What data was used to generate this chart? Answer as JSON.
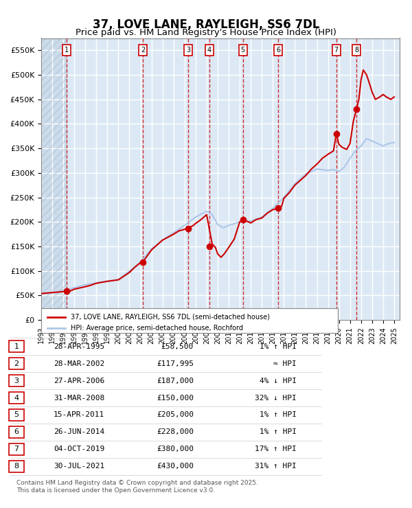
{
  "title": "37, LOVE LANE, RAYLEIGH, SS6 7DL",
  "subtitle": "Price paid vs. HM Land Registry's House Price Index (HPI)",
  "legend_house": "37, LOVE LANE, RAYLEIGH, SS6 7DL (semi-detached house)",
  "legend_hpi": "HPI: Average price, semi-detached house, Rochford",
  "footer": "Contains HM Land Registry data © Crown copyright and database right 2025.\nThis data is licensed under the Open Government Licence v3.0.",
  "xlim_start": 1993.0,
  "xlim_end": 2025.5,
  "ylim_min": 0,
  "ylim_max": 575000,
  "yticks": [
    0,
    50000,
    100000,
    150000,
    200000,
    250000,
    300000,
    350000,
    400000,
    450000,
    500000,
    550000
  ],
  "ytick_labels": [
    "£0",
    "£50K",
    "£100K",
    "£150K",
    "£200K",
    "£250K",
    "£300K",
    "£350K",
    "£400K",
    "£450K",
    "£500K",
    "£550K"
  ],
  "xtick_years": [
    1993,
    1994,
    1995,
    1996,
    1997,
    1998,
    1999,
    2000,
    2001,
    2002,
    2003,
    2004,
    2005,
    2006,
    2007,
    2008,
    2009,
    2010,
    2011,
    2012,
    2013,
    2014,
    2015,
    2016,
    2017,
    2018,
    2019,
    2020,
    2021,
    2022,
    2023,
    2024,
    2025
  ],
  "sales": [
    {
      "num": 1,
      "date": "28-APR-1995",
      "year": 1995.32,
      "price": 58500,
      "pct": "1%",
      "dir": "↑",
      "rel": "HPI"
    },
    {
      "num": 2,
      "date": "28-MAR-2002",
      "year": 2002.24,
      "price": 117995,
      "pct": "≈",
      "dir": "",
      "rel": "HPI"
    },
    {
      "num": 3,
      "date": "27-APR-2006",
      "year": 2006.32,
      "price": 187000,
      "pct": "4%",
      "dir": "↓",
      "rel": "HPI"
    },
    {
      "num": 4,
      "date": "31-MAR-2008",
      "year": 2008.25,
      "price": 150000,
      "pct": "32%",
      "dir": "↓",
      "rel": "HPI"
    },
    {
      "num": 5,
      "date": "15-APR-2011",
      "year": 2011.29,
      "price": 205000,
      "pct": "1%",
      "dir": "↑",
      "rel": "HPI"
    },
    {
      "num": 6,
      "date": "26-JUN-2014",
      "year": 2014.49,
      "price": 228000,
      "pct": "1%",
      "dir": "↑",
      "rel": "HPI"
    },
    {
      "num": 7,
      "date": "04-OCT-2019",
      "year": 2019.76,
      "price": 380000,
      "pct": "17%",
      "dir": "↑",
      "rel": "HPI"
    },
    {
      "num": 8,
      "date": "30-JUL-2021",
      "year": 2021.58,
      "price": 430000,
      "pct": "31%",
      "dir": "↑",
      "rel": "HPI"
    }
  ],
  "hpi_color": "#aec6e8",
  "house_color": "#cc0000",
  "marker_color": "#cc0000",
  "dashed_color": "#cc0000",
  "bg_color": "#dce9f5",
  "hatch_color": "#b0c4d8",
  "grid_color": "#ffffff",
  "box_color": "#cc0000",
  "table_box_color": "#cc0000"
}
